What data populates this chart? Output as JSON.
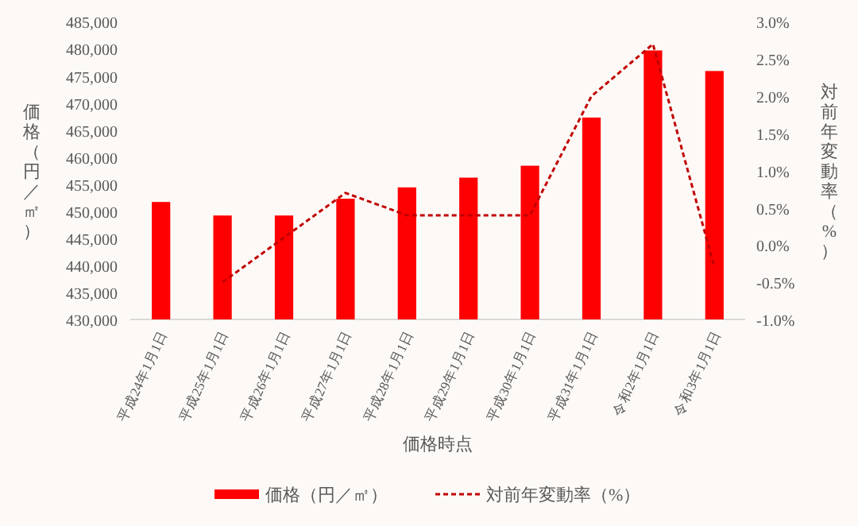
{
  "chart_data": {
    "type": "bar",
    "xlabel": "価格時点",
    "ylabel": "価格（円／㎡）",
    "y2label": "対前年変動率（%）",
    "categories": [
      "平成24年1月1日",
      "平成25年1月1日",
      "平成26年1月1日",
      "平成27年1月1日",
      "平成28年1月1日",
      "平成29年1月1日",
      "平成30年1月1日",
      "平成31年1月1日",
      "令和2年1月1日",
      "令和3年1月1日"
    ],
    "series": [
      {
        "name": "価格（円／㎡）",
        "color": "#ff0000",
        "values": [
          451700,
          449200,
          449200,
          452300,
          454400,
          456200,
          458400,
          467300,
          479700,
          475900
        ]
      },
      {
        "name": "対前年変動率（%）",
        "type": "line",
        "axis": "y2",
        "color": "#c00000",
        "line_style": "dashed",
        "values": [
          null,
          -0.5,
          0.1,
          0.7,
          0.4,
          0.4,
          0.4,
          2.0,
          2.7,
          -0.3
        ]
      }
    ],
    "ylim": [
      430000,
      485000
    ],
    "yticks": [
      {
        "value": 430000,
        "label": "430,000"
      },
      {
        "value": 435000,
        "label": "435,000"
      },
      {
        "value": 440000,
        "label": "440,000"
      },
      {
        "value": 445000,
        "label": "445,000"
      },
      {
        "value": 450000,
        "label": "450,000"
      },
      {
        "value": 455000,
        "label": "455,000"
      },
      {
        "value": 460000,
        "label": "460,000"
      },
      {
        "value": 465000,
        "label": "465,000"
      },
      {
        "value": 470000,
        "label": "470,000"
      },
      {
        "value": 475000,
        "label": "475,000"
      },
      {
        "value": 480000,
        "label": "480,000"
      },
      {
        "value": 485000,
        "label": "485,000"
      }
    ],
    "y2lim": [
      -1.0,
      3.0
    ],
    "y2ticks": [
      {
        "value": -1.0,
        "label": "-1.0%"
      },
      {
        "value": -0.5,
        "label": "-0.5%"
      },
      {
        "value": 0,
        "label": "0.0%"
      },
      {
        "value": 0.5,
        "label": "0.5%"
      },
      {
        "value": 1.0,
        "label": "1.0%"
      },
      {
        "value": 1.5,
        "label": "1.5%"
      },
      {
        "value": 2.0,
        "label": "2.0%"
      },
      {
        "value": 2.5,
        "label": "2.5%"
      },
      {
        "value": 3.0,
        "label": "3.0%"
      }
    ],
    "legend": "bottom",
    "marker": "none"
  }
}
